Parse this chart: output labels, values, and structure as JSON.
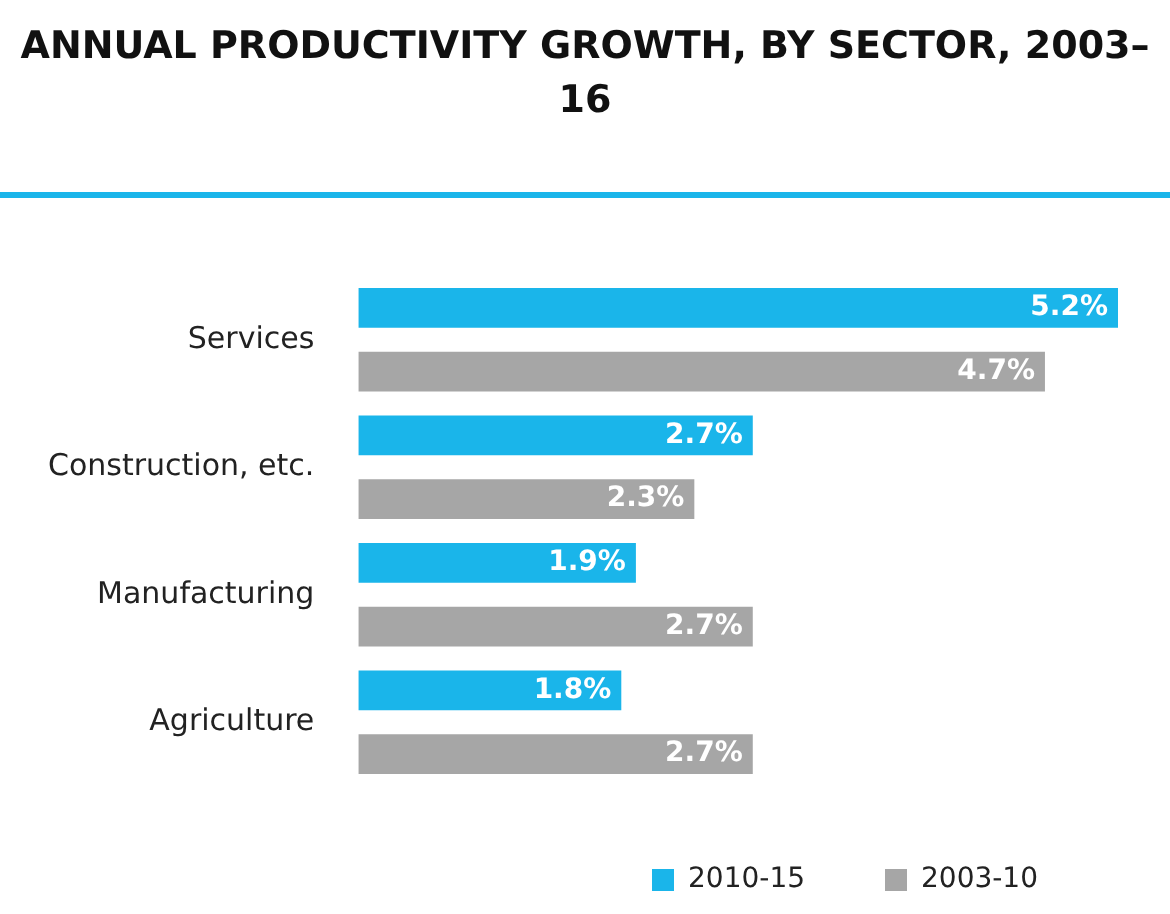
{
  "chart_data": {
    "type": "bar",
    "orientation": "horizontal",
    "title": "ANNUAL PRODUCTIVITY GROWTH, BY SECTOR, 2003–16",
    "categories": [
      "Services",
      "Construction, etc.",
      "Manufacturing",
      "Agriculture"
    ],
    "series": [
      {
        "name": "2010-15",
        "color": "#1ab5ea",
        "values": [
          5.2,
          2.7,
          1.9,
          1.8
        ],
        "value_labels": [
          "5.2%",
          "2.7%",
          "1.9%",
          "1.8%"
        ]
      },
      {
        "name": "2003-10",
        "color": "#a6a6a6",
        "values": [
          4.7,
          2.3,
          2.7,
          2.7
        ],
        "value_labels": [
          "4.7%",
          "2.3%",
          "2.7%",
          "2.7%"
        ]
      }
    ],
    "xlim": [
      0,
      5.2
    ],
    "legend": "bottom right"
  }
}
